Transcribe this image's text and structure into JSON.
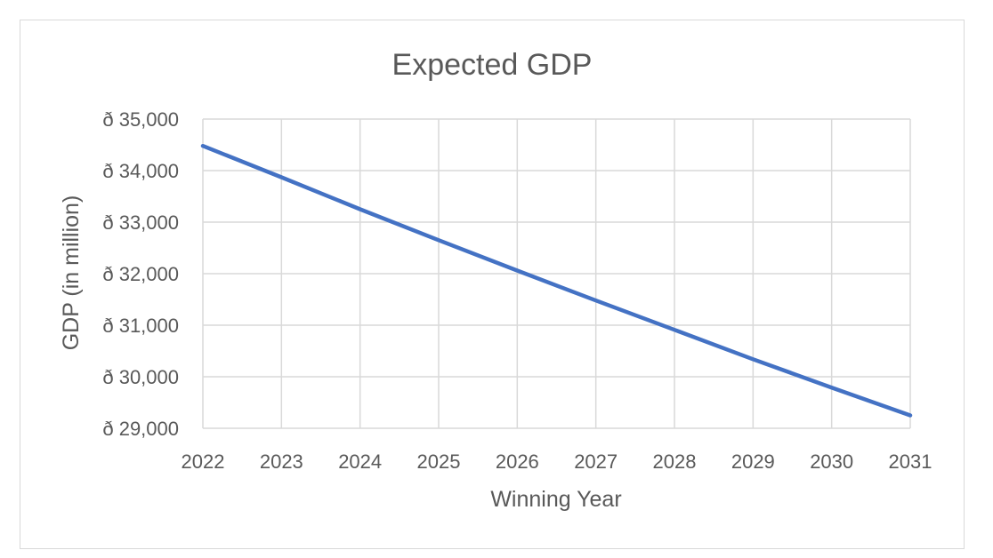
{
  "chart_data": {
    "type": "line",
    "title": "Expected GDP",
    "xlabel": "Winning Year",
    "ylabel": "GDP (in million)",
    "x": [
      2022,
      2023,
      2024,
      2025,
      2026,
      2027,
      2028,
      2029,
      2030,
      2031
    ],
    "series": [
      {
        "values": [
          34480,
          33870,
          33250,
          32650,
          32060,
          31480,
          30910,
          30340,
          29790,
          29250
        ],
        "color": "#4472c4"
      }
    ],
    "ylim": [
      29000,
      35000
    ],
    "y_ticks": [
      29000,
      30000,
      31000,
      32000,
      33000,
      34000,
      35000
    ],
    "y_tick_labels": [
      "ð 29,000",
      "ð 30,000",
      "ð 31,000",
      "ð 32,000",
      "ð 33,000",
      "ð 34,000",
      "ð 35,000"
    ],
    "x_tick_labels": [
      "2022",
      "2023",
      "2024",
      "2025",
      "2026",
      "2027",
      "2028",
      "2029",
      "2030",
      "2031"
    ],
    "grid": true,
    "legend": "none",
    "gridline_color": "#d9d9d9"
  }
}
